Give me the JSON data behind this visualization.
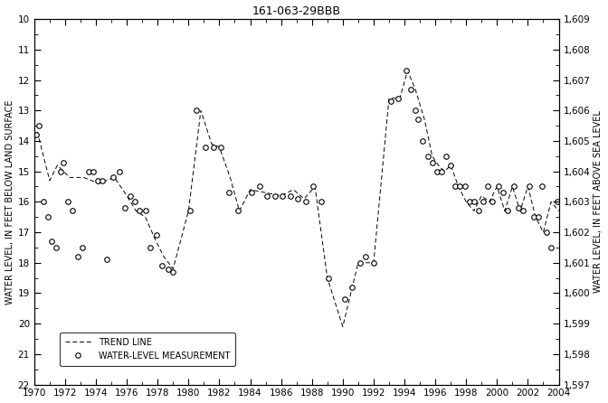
{
  "title": "161-063-29BBB",
  "left_ylabel": "WATER LEVEL, IN FEET BELOW LAND SURFACE",
  "right_ylabel": "WATER LEVEL, IN FEET ABOVE SEA LEVEL",
  "xlim": [
    1970,
    2004
  ],
  "ylim_left": [
    10,
    22
  ],
  "ylim_right": [
    1597,
    1609
  ],
  "xticks": [
    1970,
    1972,
    1974,
    1976,
    1978,
    1980,
    1982,
    1984,
    1986,
    1988,
    1990,
    1992,
    1994,
    1996,
    1998,
    2000,
    2002,
    2004
  ],
  "yticks_left": [
    10,
    11,
    12,
    13,
    14,
    15,
    16,
    17,
    18,
    19,
    20,
    21,
    22
  ],
  "yticks_right": [
    1597,
    1598,
    1599,
    1600,
    1601,
    1602,
    1603,
    1604,
    1605,
    1606,
    1607,
    1608,
    1609
  ],
  "trend_x": [
    1970.2,
    1971.0,
    1971.5,
    1972.3,
    1973.2,
    1974.2,
    1975.2,
    1976.0,
    1976.6,
    1977.2,
    1977.9,
    1978.4,
    1979.0,
    1980.0,
    1980.8,
    1981.5,
    1982.0,
    1982.7,
    1983.3,
    1984.0,
    1985.0,
    1986.0,
    1986.8,
    1987.5,
    1988.2,
    1989.0,
    1990.0,
    1991.0,
    1992.0,
    1993.0,
    1993.7,
    1994.2,
    1994.7,
    1995.3,
    1995.8,
    1996.2,
    1996.6,
    1997.0,
    1997.5,
    1998.0,
    1998.5,
    1999.0,
    1999.5,
    2000.0,
    2000.5,
    2001.0,
    2001.5,
    2002.0,
    2002.5,
    2003.0,
    2003.5,
    2004.0
  ],
  "trend_y": [
    13.7,
    15.3,
    14.8,
    15.2,
    15.2,
    15.4,
    15.2,
    15.8,
    16.3,
    16.5,
    17.3,
    17.8,
    18.2,
    16.3,
    13.0,
    14.1,
    14.2,
    15.2,
    16.3,
    15.6,
    15.7,
    15.8,
    15.6,
    15.9,
    15.5,
    18.5,
    20.1,
    18.0,
    18.0,
    12.6,
    12.6,
    11.7,
    12.3,
    13.3,
    14.5,
    14.8,
    15.0,
    14.8,
    15.5,
    16.0,
    16.3,
    15.8,
    16.0,
    15.5,
    16.3,
    15.5,
    16.3,
    15.5,
    16.5,
    17.0,
    16.0,
    16.3
  ],
  "meas_x": [
    1970.1,
    1970.3,
    1970.6,
    1970.9,
    1971.1,
    1971.4,
    1971.7,
    1971.9,
    1972.2,
    1972.5,
    1972.8,
    1973.1,
    1973.5,
    1973.8,
    1974.1,
    1974.4,
    1974.7,
    1975.1,
    1975.5,
    1975.9,
    1976.2,
    1976.5,
    1976.8,
    1977.2,
    1977.5,
    1977.9,
    1978.3,
    1978.7,
    1979.0,
    1980.1,
    1980.5,
    1981.1,
    1981.6,
    1982.1,
    1982.6,
    1983.2,
    1984.1,
    1984.6,
    1985.1,
    1985.6,
    1986.1,
    1986.6,
    1987.1,
    1987.6,
    1988.1,
    1988.6,
    1989.1,
    1990.1,
    1990.6,
    1991.1,
    1991.5,
    1992.0,
    1993.1,
    1993.6,
    1994.1,
    1994.4,
    1994.7,
    1994.9,
    1995.2,
    1995.5,
    1995.8,
    1996.1,
    1996.4,
    1996.7,
    1997.0,
    1997.3,
    1997.6,
    1997.9,
    1998.2,
    1998.5,
    1998.8,
    1999.1,
    1999.4,
    1999.7,
    2000.1,
    2000.4,
    2000.7,
    2001.1,
    2001.4,
    2001.7,
    2002.1,
    2002.4,
    2002.7,
    2002.9,
    2003.2,
    2003.5,
    2003.9,
    2004.2
  ],
  "meas_y": [
    13.8,
    13.5,
    16.0,
    16.5,
    17.3,
    17.5,
    15.0,
    14.7,
    16.0,
    16.3,
    17.8,
    17.5,
    15.0,
    15.0,
    15.3,
    15.3,
    17.9,
    15.2,
    15.0,
    16.2,
    15.8,
    16.0,
    16.3,
    16.3,
    17.5,
    17.1,
    18.1,
    18.2,
    18.3,
    16.3,
    13.0,
    14.2,
    14.2,
    14.2,
    15.7,
    16.3,
    15.7,
    15.5,
    15.8,
    15.8,
    15.8,
    15.8,
    15.9,
    16.0,
    15.5,
    16.0,
    18.5,
    19.2,
    18.8,
    18.0,
    17.8,
    18.0,
    12.7,
    12.6,
    11.7,
    12.3,
    13.0,
    13.3,
    14.0,
    14.5,
    14.7,
    15.0,
    15.0,
    14.5,
    14.8,
    15.5,
    15.5,
    15.5,
    16.0,
    16.0,
    16.3,
    16.0,
    15.5,
    16.0,
    15.5,
    15.7,
    16.3,
    15.5,
    16.2,
    16.3,
    15.5,
    16.5,
    16.5,
    15.5,
    17.0,
    17.5,
    16.0,
    16.3
  ],
  "bg_color": "#ffffff",
  "line_color": "#000000",
  "marker_color": "#000000"
}
